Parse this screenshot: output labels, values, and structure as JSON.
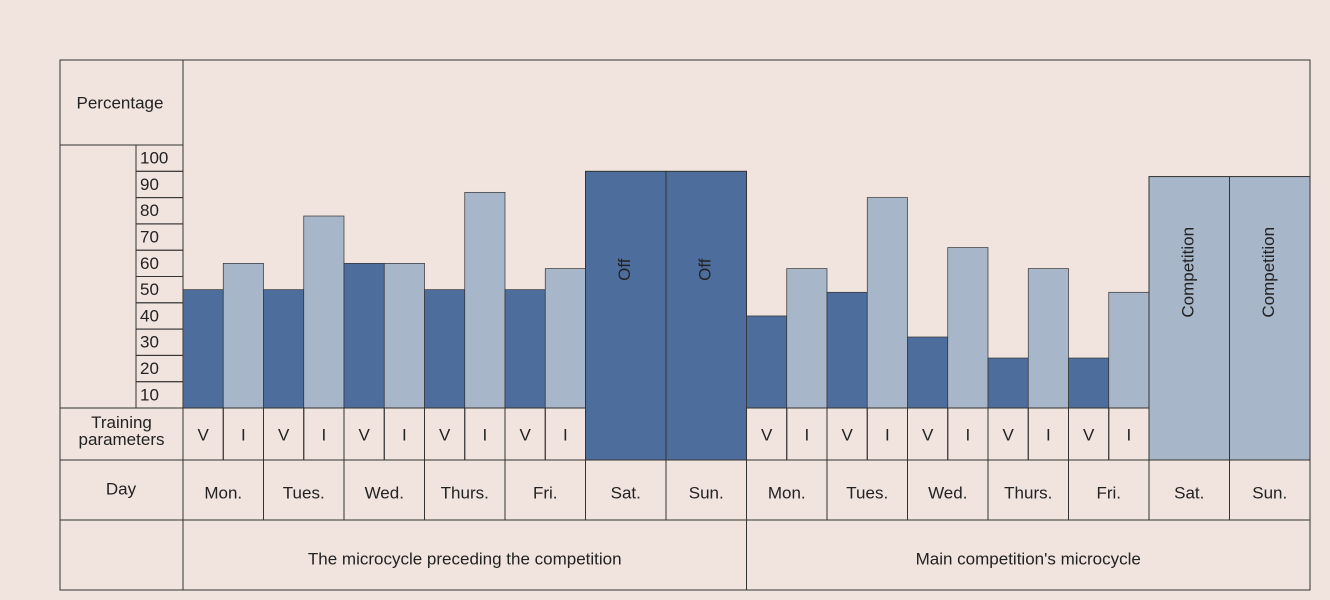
{
  "chart_data": {
    "type": "bar",
    "y_label": "Percentage",
    "param_label": "Training parameters",
    "day_label": "Day",
    "categories": [
      "Mon.",
      "Tues.",
      "Wed.",
      "Thurs.",
      "Fri.",
      "Sat.",
      "Sun.",
      "Mon.",
      "Tues.",
      "Wed.",
      "Thurs.",
      "Fri.",
      "Sat.",
      "Sun."
    ],
    "series": [
      {
        "name": "V",
        "color": "#4d6e9c",
        "values": [
          50,
          50,
          60,
          50,
          50,
          null,
          null,
          40,
          49,
          32,
          24,
          24,
          null,
          null
        ]
      },
      {
        "name": "I",
        "color": "#a7b6c8",
        "values": [
          60,
          78,
          60,
          87,
          58,
          null,
          null,
          58,
          85,
          66,
          58,
          49,
          null,
          null
        ]
      }
    ],
    "day_bars": {
      "values": [
        null,
        null,
        null,
        null,
        null,
        95,
        95,
        null,
        null,
        null,
        null,
        null,
        93,
        93
      ],
      "labels": [
        null,
        null,
        null,
        null,
        null,
        "Off",
        "Off",
        null,
        null,
        null,
        null,
        null,
        "Competition",
        "Competition"
      ],
      "colors": [
        null,
        null,
        null,
        null,
        null,
        "#4d6e9c",
        "#4d6e9c",
        null,
        null,
        null,
        null,
        null,
        "#a7b6c8",
        "#a7b6c8"
      ]
    },
    "periods": [
      {
        "label": "The microcycle preceding the competition",
        "days": 7
      },
      {
        "label": "Main competition's microcycle",
        "days": 7
      }
    ],
    "ylim": [
      5,
      105
    ],
    "yticks": [
      10,
      20,
      30,
      40,
      50,
      60,
      70,
      80,
      90,
      100
    ]
  }
}
